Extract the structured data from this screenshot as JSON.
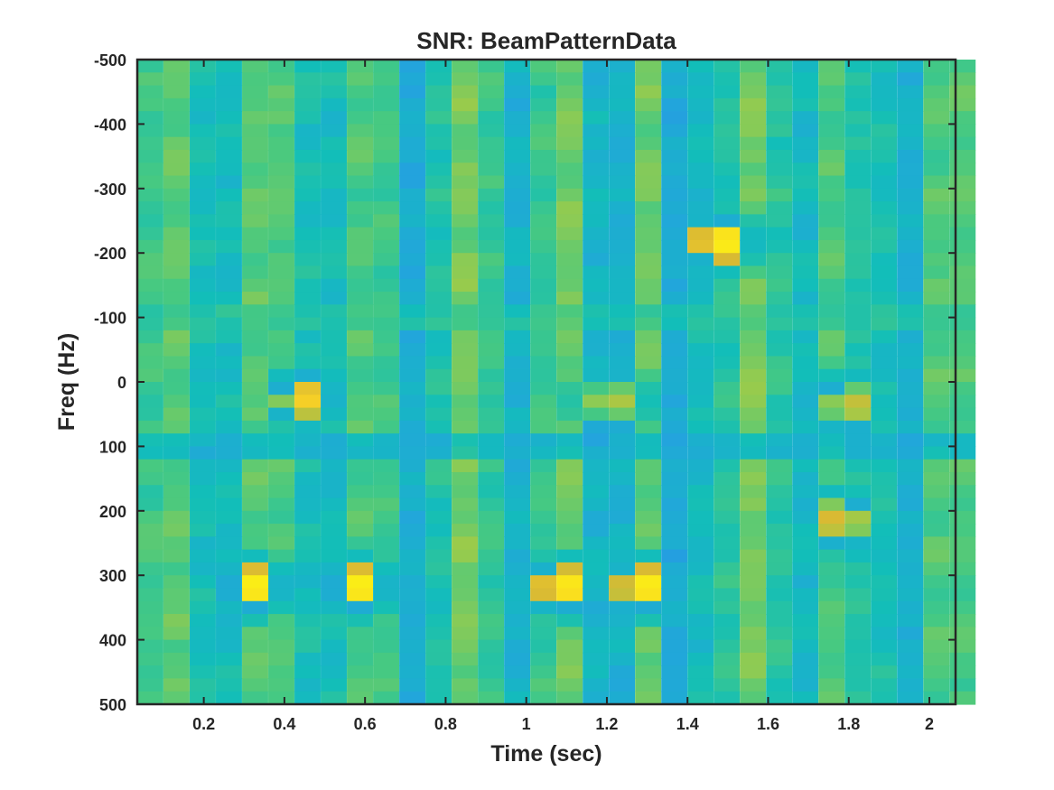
{
  "chart_data": {
    "type": "heatmap",
    "title": "SNR: BeamPatternData",
    "xlabel": "Time (sec)",
    "ylabel": "Freq (Hz)",
    "xlim": [
      0.035,
      2.065
    ],
    "ylim": [
      -500,
      500
    ],
    "y_direction": "reversed",
    "xticks": [
      0.2,
      0.4,
      0.6,
      0.8,
      1,
      1.2,
      1.4,
      1.6,
      1.8,
      2
    ],
    "xtick_labels": [
      "0.2",
      "0.4",
      "0.6",
      "0.8",
      "1",
      "1.2",
      "1.4",
      "1.6",
      "1.8",
      "2"
    ],
    "yticks": [
      -500,
      -400,
      -300,
      -200,
      -100,
      0,
      100,
      200,
      300,
      400,
      500
    ],
    "ytick_labels": [
      "-500",
      "-400",
      "-300",
      "-200",
      "-100",
      "0",
      "100",
      "200",
      "300",
      "400",
      "500"
    ],
    "grid": false,
    "colormap": "parula",
    "colormap_stops": [
      "#3e26a8",
      "#4653f6",
      "#2f7ef7",
      "#22a6db",
      "#12beb9",
      "#47c981",
      "#9ccb4a",
      "#d9ba33",
      "#fbd325",
      "#f9fb0e"
    ],
    "x_bin_count": 32,
    "y_bin_count": 50,
    "x_bin_width": 0.065,
    "y_bin_width": 20,
    "hotspots": [
      {
        "t": 0.45,
        "f": 25,
        "level": 0.88
      },
      {
        "t": 0.32,
        "f": 318,
        "level": 0.98
      },
      {
        "t": 0.58,
        "f": 318,
        "level": 0.98
      },
      {
        "t": 1.09,
        "f": 318,
        "level": 0.98
      },
      {
        "t": 1.29,
        "f": 318,
        "level": 0.98
      },
      {
        "t": 1.48,
        "f": -218,
        "level": 0.99
      },
      {
        "t": 1.78,
        "f": 215,
        "level": 0.82
      },
      {
        "t": 1.21,
        "f": 30,
        "level": 0.75
      },
      {
        "t": 1.8,
        "f": 35,
        "level": 0.78
      }
    ],
    "low_lines": [
      {
        "axis": "time",
        "t": 1.35,
        "level": 0.12
      },
      {
        "axis": "time",
        "t": 1.8,
        "level": 0.24
      },
      {
        "axis": "time",
        "t": 1.93,
        "level": 0.22
      },
      {
        "axis": "freq",
        "f": 100,
        "level": 0.18
      },
      {
        "axis": "freq",
        "f": -95,
        "level": 0.28
      }
    ]
  }
}
